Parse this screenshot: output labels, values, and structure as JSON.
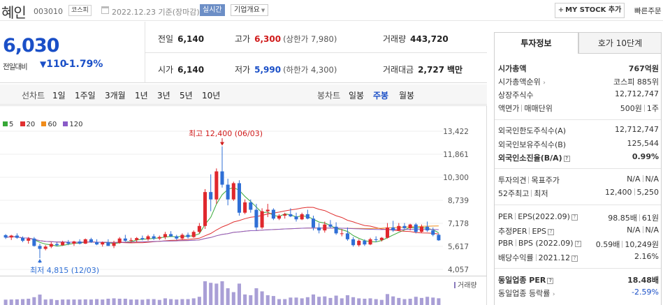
{
  "header": {
    "company": "혜인",
    "code": "003010",
    "market": "코스피",
    "date": "2022.12.23  기준(장마감)",
    "realtime": "실시간",
    "overview": "기업개요",
    "mystock": "MY STOCK 추가",
    "quick_order": "빠른주문"
  },
  "price": {
    "current": "6,030",
    "prev_label": "전일대비",
    "change": "110",
    "change_pct": "-1.79%",
    "color": "#1a4fc7"
  },
  "quote": {
    "prev_close": {
      "label": "전일",
      "value": "6,140"
    },
    "high": {
      "label": "고가",
      "value": "6,300",
      "sub": "(상한가 7,980)"
    },
    "volume": {
      "label": "거래량",
      "value": "443,720"
    },
    "open": {
      "label": "시가",
      "value": "6,140"
    },
    "low": {
      "label": "저가",
      "value": "5,990",
      "sub": "(하한가 4,300)"
    },
    "amount": {
      "label": "거래대금",
      "value": "2,727",
      "unit": "백만"
    }
  },
  "period_bar": {
    "line_label": "선차트",
    "line_periods": [
      "1일",
      "1주일",
      "3개월",
      "1년",
      "3년",
      "5년",
      "10년"
    ],
    "candle_label": "봉차트",
    "candle_periods": [
      "일봉",
      "주봉",
      "월봉"
    ],
    "active_candle": "주봉"
  },
  "chart_data": {
    "type": "candlestick",
    "legend": [
      {
        "name": "5",
        "color": "#37a837"
      },
      {
        "name": "20",
        "color": "#e03030"
      },
      {
        "name": "60",
        "color": "#f08c1a"
      },
      {
        "name": "120",
        "color": "#8a5bc8"
      }
    ],
    "y_ticks": [
      "13,422",
      "11,861",
      "10,300",
      "8,739",
      "7,178",
      "5,617",
      "4,057"
    ],
    "ylim": [
      4057,
      13422
    ],
    "high_label": "최고 12,400 (06/03)",
    "low_label": "최저 4,815 (12/03)",
    "volume_label": "거래량",
    "candles": [
      [
        6380,
        6450,
        6120,
        6220
      ],
      [
        6220,
        6400,
        6050,
        6350
      ],
      [
        6350,
        6500,
        6130,
        6200
      ],
      [
        6200,
        6300,
        5900,
        6000
      ],
      [
        6000,
        6250,
        5800,
        6150
      ],
      [
        6150,
        6250,
        5600,
        5650
      ],
      [
        5650,
        5800,
        4815,
        5450
      ],
      [
        5450,
        5700,
        5350,
        5600
      ],
      [
        5600,
        5900,
        5500,
        5780
      ],
      [
        5780,
        5900,
        5620,
        5700
      ],
      [
        5700,
        6000,
        5650,
        5900
      ],
      [
        5900,
        6050,
        5700,
        5800
      ],
      [
        5800,
        6000,
        5650,
        5950
      ],
      [
        5950,
        6100,
        5750,
        5800
      ],
      [
        5800,
        6150,
        5780,
        6100
      ],
      [
        6100,
        6200,
        5850,
        5900
      ],
      [
        5900,
        6100,
        5700,
        5750
      ],
      [
        5750,
        5950,
        5600,
        5900
      ],
      [
        5900,
        6100,
        5650,
        5650
      ],
      [
        5650,
        6000,
        5500,
        5850
      ],
      [
        5850,
        6250,
        5800,
        6150
      ],
      [
        6150,
        6400,
        5950,
        6000
      ],
      [
        6000,
        6200,
        5850,
        6050
      ],
      [
        6050,
        6250,
        5900,
        6180
      ],
      [
        6180,
        6350,
        6020,
        6100
      ],
      [
        6100,
        6400,
        6000,
        6300
      ],
      [
        6300,
        6450,
        6050,
        6150
      ],
      [
        6150,
        6350,
        6050,
        6250
      ],
      [
        6250,
        6600,
        6100,
        6450
      ],
      [
        6450,
        6650,
        6250,
        6300
      ],
      [
        6300,
        6400,
        6050,
        6150
      ],
      [
        6150,
        6500,
        6100,
        6400
      ],
      [
        6400,
        6550,
        6150,
        6250
      ],
      [
        6250,
        6700,
        6200,
        6600
      ],
      [
        6600,
        7200,
        6500,
        7000
      ],
      [
        7000,
        9500,
        6800,
        9300
      ],
      [
        9300,
        10500,
        8000,
        8800
      ],
      [
        8800,
        10900,
        8500,
        10700
      ],
      [
        10700,
        12400,
        9600,
        9800
      ],
      [
        9800,
        10200,
        8400,
        8800
      ],
      [
        8800,
        10000,
        8700,
        9900
      ],
      [
        9900,
        10100,
        7700,
        7900
      ],
      [
        7900,
        8800,
        7800,
        8600
      ],
      [
        8600,
        8800,
        7900,
        8100
      ],
      [
        8100,
        8500,
        6700,
        6900
      ],
      [
        6900,
        8200,
        6800,
        8000
      ],
      [
        8000,
        8500,
        7600,
        8100
      ],
      [
        8100,
        8200,
        7400,
        7500
      ],
      [
        7500,
        7800,
        7400,
        7700
      ],
      [
        7700,
        7900,
        7500,
        7800
      ],
      [
        7800,
        8200,
        7600,
        7650
      ],
      [
        7650,
        7900,
        7300,
        7450
      ],
      [
        7450,
        7900,
        7400,
        7800
      ],
      [
        7800,
        8100,
        7450,
        7500
      ],
      [
        7500,
        7700,
        6700,
        6900
      ],
      [
        6900,
        7200,
        6500,
        6700
      ],
      [
        6700,
        7300,
        6550,
        7100
      ],
      [
        7100,
        7400,
        6850,
        6950
      ],
      [
        6950,
        7250,
        6400,
        6500
      ],
      [
        6500,
        6800,
        6300,
        6500
      ],
      [
        6500,
        6900,
        6000,
        6100
      ],
      [
        6100,
        6250,
        5600,
        5700
      ],
      [
        5700,
        6100,
        5600,
        6000
      ],
      [
        6000,
        6100,
        5650,
        5750
      ],
      [
        5750,
        6200,
        5700,
        6100
      ],
      [
        6100,
        6300,
        5900,
        6050
      ],
      [
        6050,
        6250,
        5950,
        6200
      ],
      [
        6200,
        7200,
        6150,
        6900
      ],
      [
        6900,
        7350,
        6600,
        6700
      ],
      [
        6700,
        7200,
        6650,
        7000
      ],
      [
        7000,
        7200,
        6800,
        6850
      ],
      [
        6850,
        7150,
        6700,
        7100
      ],
      [
        7100,
        7200,
        6500,
        6600
      ],
      [
        6600,
        7100,
        6550,
        6950
      ],
      [
        6950,
        7300,
        6600,
        6700
      ],
      [
        6700,
        6900,
        6300,
        6400
      ],
      [
        6400,
        6500,
        5990,
        6030
      ]
    ]
  },
  "tabs": {
    "active": "투자정보",
    "other": "호가 10단계"
  },
  "info": {
    "market_cap": {
      "label": "시가총액",
      "value": "767억원"
    },
    "market_cap_rank": {
      "label": "시가총액순위",
      "value": "코스피 885위"
    },
    "listed_shares": {
      "label": "상장주식수",
      "value": "12,712,747"
    },
    "par_unit": {
      "label1": "액면가",
      "label2": "매매단위",
      "value1": "500원",
      "value2": "1주"
    },
    "foreign_limit": {
      "label": "외국인한도주식수(A)",
      "value": "12,712,747"
    },
    "foreign_hold": {
      "label": "외국인보유주식수(B)",
      "value": "125,544"
    },
    "foreign_ratio": {
      "label": "외국인소진율(B/A)",
      "value": "0.99%"
    },
    "opinion": {
      "label1": "투자의견",
      "label2": "목표주가",
      "value1": "N/A",
      "value2": "N/A"
    },
    "week52": {
      "label1": "52주최고",
      "label2": "최저",
      "value1": "12,400",
      "value2": "5,250"
    },
    "per_eps": {
      "label1": "PER",
      "label2": "EPS(2022.09)",
      "value1": "98.85배",
      "value2": "61원"
    },
    "est_per": {
      "label1": "추정PER",
      "label2": "EPS",
      "value1": "N/A",
      "value2": "N/A"
    },
    "pbr_bps": {
      "label1": "PBR",
      "label2": "BPS (2022.09)",
      "value1": "0.59배",
      "value2": "10,249원"
    },
    "dividend": {
      "label": "배당수익률",
      "date": "2021.12",
      "value": "2.16%"
    },
    "industry_per": {
      "label": "동일업종 PER",
      "value": "18.48배"
    },
    "industry_change": {
      "label": "동일업종 등락률",
      "value": "-2.59%"
    }
  }
}
